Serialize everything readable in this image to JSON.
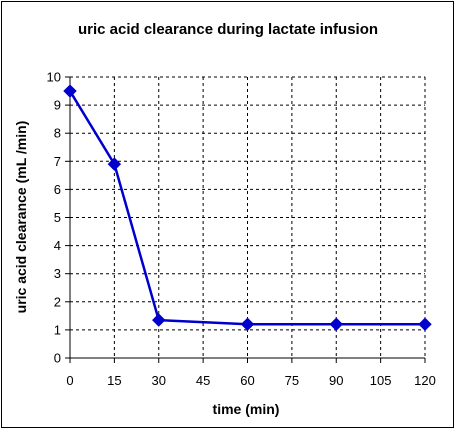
{
  "chart_data": {
    "type": "line",
    "title": "uric acid clearance during lactate infusion",
    "xlabel": "time (min)",
    "ylabel": "uric acid clearance (mL /min)",
    "xlim": [
      0,
      120
    ],
    "ylim": [
      0,
      10
    ],
    "xticks": [
      0,
      15,
      30,
      45,
      60,
      75,
      90,
      105,
      120
    ],
    "yticks": [
      0,
      1,
      2,
      3,
      4,
      5,
      6,
      7,
      8,
      9,
      10
    ],
    "grid": true,
    "series": [
      {
        "color": "#0000cc",
        "marker": "diamond",
        "x": [
          0,
          15,
          30,
          60,
          90,
          120
        ],
        "y": [
          9.5,
          6.9,
          1.35,
          1.2,
          1.2,
          1.2
        ]
      }
    ]
  }
}
